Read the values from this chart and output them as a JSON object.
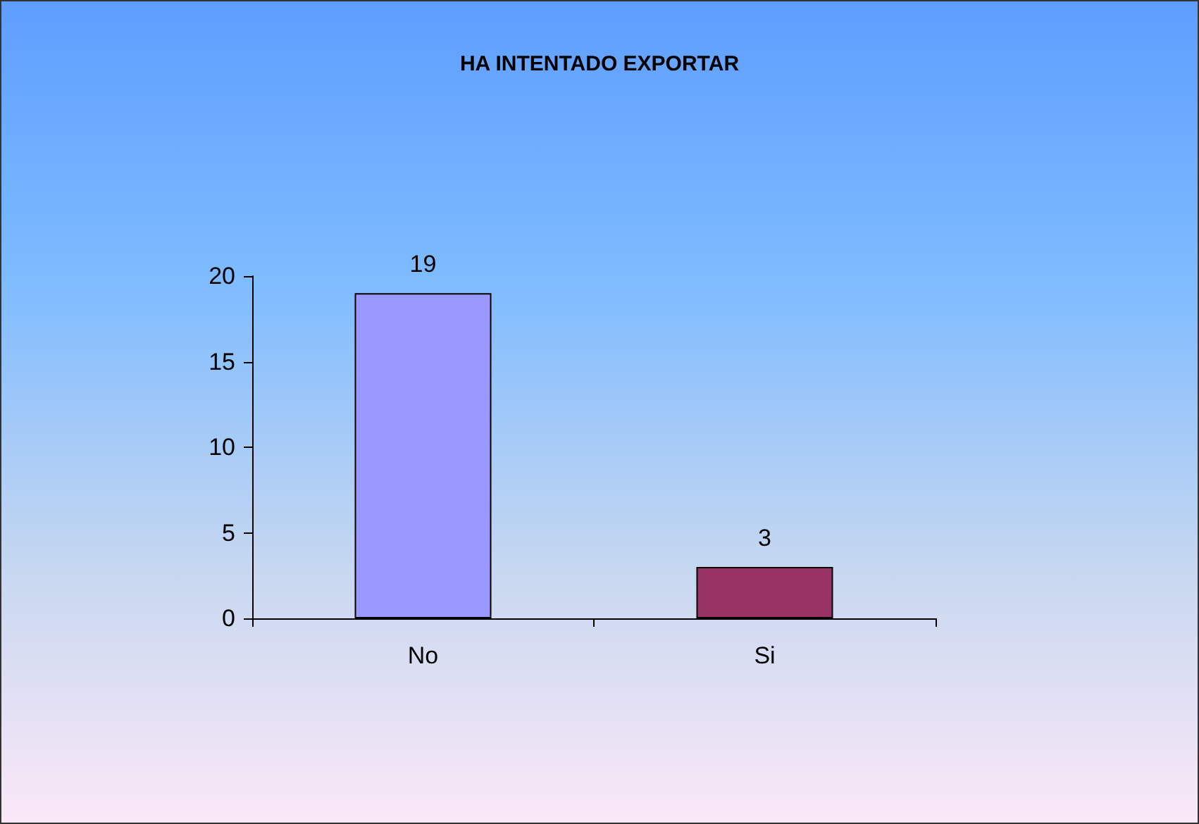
{
  "chart_data": {
    "type": "bar",
    "title": "HA INTENTADO EXPORTAR",
    "categories": [
      "No",
      "Si"
    ],
    "values": [
      19,
      3
    ],
    "colors": [
      "#9999ff",
      "#993366"
    ],
    "ylim": [
      0,
      20
    ],
    "yticks": [
      0,
      5,
      10,
      15,
      20
    ],
    "grid": false,
    "data_labels": true
  }
}
